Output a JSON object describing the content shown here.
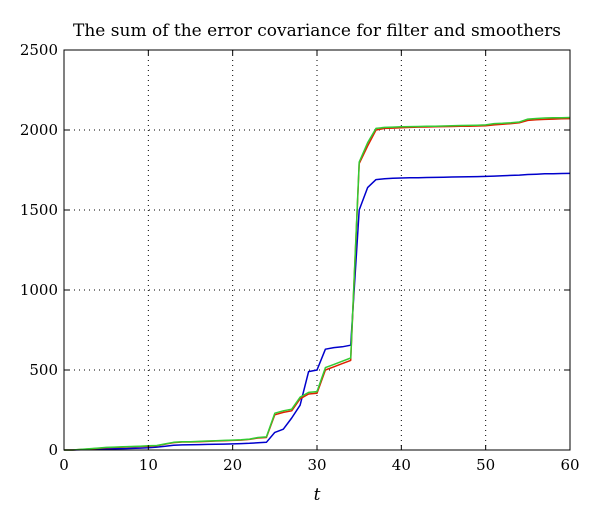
{
  "chart_data": {
    "type": "line",
    "title": "The sum of the error covariance for filter and smoothers",
    "xlabel": "t",
    "ylabel": "",
    "xlim": [
      0,
      60
    ],
    "ylim": [
      0,
      2500
    ],
    "xticks": [
      0,
      10,
      20,
      30,
      40,
      50,
      60
    ],
    "yticks": [
      0,
      500,
      1000,
      1500,
      2000,
      2500
    ],
    "grid": true,
    "x": [
      0,
      1,
      2,
      3,
      4,
      5,
      6,
      7,
      8,
      9,
      10,
      11,
      12,
      13,
      14,
      15,
      16,
      17,
      18,
      19,
      20,
      21,
      22,
      23,
      24,
      25,
      26,
      27,
      28,
      29,
      30,
      31,
      32,
      33,
      34,
      35,
      36,
      37,
      38,
      39,
      40,
      41,
      42,
      43,
      44,
      45,
      46,
      47,
      48,
      49,
      50,
      51,
      52,
      53,
      54,
      55,
      56,
      57,
      58,
      59,
      60
    ],
    "series": [
      {
        "color": "#0000cc",
        "values": [
          0,
          0,
          2,
          4,
          6,
          7,
          8,
          9,
          10,
          12,
          14,
          18,
          24,
          30,
          32,
          33,
          34,
          35,
          36,
          37,
          38,
          40,
          42,
          45,
          48,
          110,
          130,
          200,
          280,
          490,
          500,
          630,
          640,
          645,
          655,
          1500,
          1640,
          1690,
          1695,
          1698,
          1700,
          1701,
          1702,
          1703,
          1704,
          1705,
          1706,
          1707,
          1708,
          1709,
          1710,
          1712,
          1714,
          1716,
          1718,
          1722,
          1724,
          1726,
          1727,
          1728,
          1729
        ]
      },
      {
        "color": "#dd2200",
        "values": [
          0,
          0,
          3,
          6,
          10,
          14,
          16,
          18,
          20,
          22,
          24,
          26,
          36,
          46,
          50,
          50,
          52,
          54,
          56,
          58,
          60,
          62,
          66,
          75,
          78,
          220,
          235,
          245,
          320,
          350,
          355,
          500,
          520,
          540,
          560,
          1790,
          1900,
          2000,
          2010,
          2012,
          2014,
          2016,
          2018,
          2019,
          2020,
          2021,
          2022,
          2023,
          2024,
          2025,
          2026,
          2032,
          2036,
          2040,
          2045,
          2060,
          2064,
          2066,
          2068,
          2070,
          2071
        ]
      },
      {
        "color": "#33cc33",
        "values": [
          0,
          0,
          4,
          8,
          12,
          16,
          18,
          20,
          22,
          24,
          26,
          28,
          38,
          48,
          52,
          52,
          54,
          56,
          58,
          60,
          62,
          64,
          68,
          78,
          82,
          230,
          245,
          255,
          330,
          360,
          365,
          515,
          535,
          555,
          575,
          1800,
          1920,
          2010,
          2016,
          2018,
          2020,
          2021,
          2022,
          2023,
          2024,
          2025,
          2027,
          2028,
          2029,
          2030,
          2032,
          2040,
          2042,
          2045,
          2050,
          2068,
          2072,
          2075,
          2076,
          2077,
          2078
        ]
      }
    ]
  }
}
